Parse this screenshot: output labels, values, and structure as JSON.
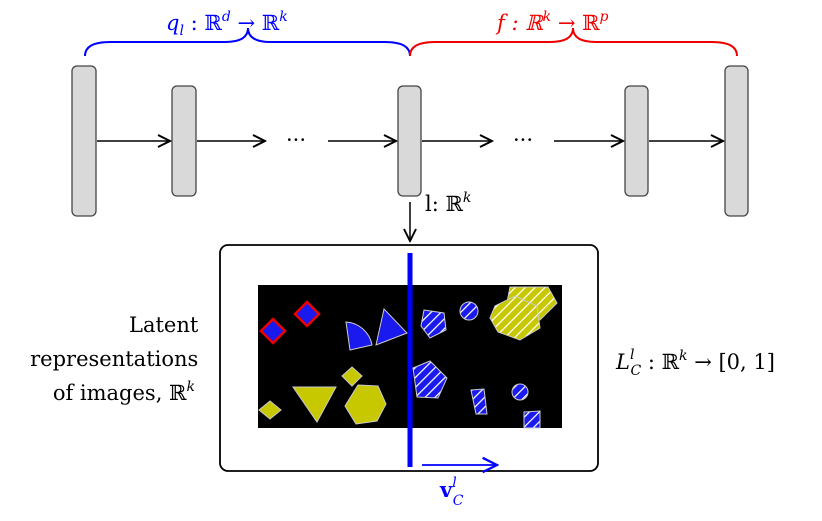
{
  "encoder_label": {
    "base": "q",
    "sub": "l",
    "rest": " : ℝ",
    "sup": "d",
    "arrow": " → ℝ",
    "sup2": "k"
  },
  "head_label": {
    "base": "f : ℝ",
    "sup": "k",
    "arrow": " → ℝ",
    "sup2": "p"
  },
  "ellipsis_left": "···",
  "ellipsis_right": "···",
  "layer_label": {
    "base": "l:  ℝ",
    "sup": "k"
  },
  "latent_caption": {
    "line1": "Latent",
    "line2": "representations",
    "line3": "of images, ℝ",
    "sup": "k"
  },
  "loss_label": {
    "base": "L",
    "sup": "l",
    "sub": "C",
    "rest": " : ℝ",
    "sup2": "k",
    "tail": " → [0, 1]"
  },
  "concept_vector": {
    "base": "v",
    "sup": "l",
    "sub": "C"
  }
}
